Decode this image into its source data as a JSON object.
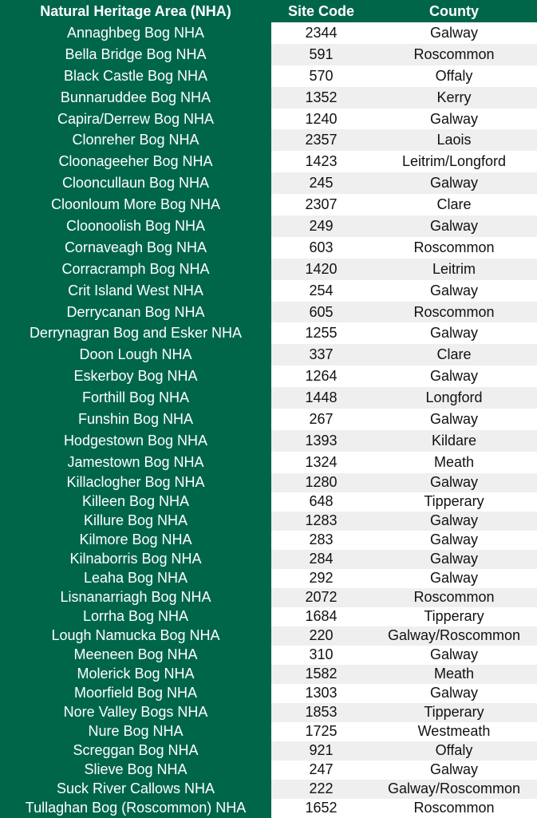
{
  "headers": {
    "nha": "Natural Heritage Area (NHA)",
    "code": "Site Code",
    "county": "County"
  },
  "colors": {
    "header_green": "#00664a",
    "row_alt": "#efefef"
  },
  "rows": [
    {
      "nha": "Annaghbeg Bog NHA",
      "code": "2344",
      "county": "Galway"
    },
    {
      "nha": "Bella Bridge Bog NHA",
      "code": "591",
      "county": "Roscommon"
    },
    {
      "nha": "Black Castle Bog NHA",
      "code": "570",
      "county": "Offaly"
    },
    {
      "nha": "Bunnaruddee Bog NHA",
      "code": "1352",
      "county": "Kerry"
    },
    {
      "nha": "Capira/Derrew Bog NHA",
      "code": "1240",
      "county": "Galway"
    },
    {
      "nha": "Clonreher Bog NHA",
      "code": "2357",
      "county": "Laois"
    },
    {
      "nha": "Cloonageeher Bog NHA",
      "code": "1423",
      "county": "Leitrim/Longford"
    },
    {
      "nha": "Clooncullaun Bog NHA",
      "code": "245",
      "county": "Galway"
    },
    {
      "nha": "Cloonloum More Bog NHA",
      "code": "2307",
      "county": "Clare"
    },
    {
      "nha": "Cloonoolish Bog NHA",
      "code": "249",
      "county": "Galway"
    },
    {
      "nha": "Cornaveagh Bog NHA",
      "code": "603",
      "county": "Roscommon"
    },
    {
      "nha": "Corracramph Bog NHA",
      "code": "1420",
      "county": "Leitrim"
    },
    {
      "nha": "Crit Island West NHA",
      "code": "254",
      "county": "Galway"
    },
    {
      "nha": "Derrycanan Bog NHA",
      "code": "605",
      "county": "Roscommon"
    },
    {
      "nha": "Derrynagran Bog and Esker NHA",
      "code": "1255",
      "county": "Galway"
    },
    {
      "nha": "Doon Lough NHA",
      "code": "337",
      "county": "Clare"
    },
    {
      "nha": "Eskerboy Bog NHA",
      "code": "1264",
      "county": "Galway"
    },
    {
      "nha": "Forthill Bog NHA",
      "code": "1448",
      "county": "Longford"
    },
    {
      "nha": "Funshin Bog NHA",
      "code": "267",
      "county": "Galway"
    },
    {
      "nha": "Hodgestown Bog NHA",
      "code": "1393",
      "county": "Kildare"
    },
    {
      "nha": "Jamestown Bog NHA",
      "code": "1324",
      "county": "Meath"
    },
    {
      "nha": "Killaclogher Bog NHA",
      "code": "1280",
      "county": "Galway"
    },
    {
      "nha": "Killeen Bog NHA",
      "code": "648",
      "county": "Tipperary"
    },
    {
      "nha": "Killure Bog NHA",
      "code": "1283",
      "county": "Galway"
    },
    {
      "nha": "Kilmore Bog NHA",
      "code": "283",
      "county": "Galway"
    },
    {
      "nha": "Kilnaborris Bog NHA",
      "code": "284",
      "county": "Galway"
    },
    {
      "nha": "Leaha Bog NHA",
      "code": "292",
      "county": "Galway"
    },
    {
      "nha": "Lisnanarriagh Bog NHA",
      "code": "2072",
      "county": "Roscommon"
    },
    {
      "nha": "Lorrha Bog NHA",
      "code": "1684",
      "county": "Tipperary"
    },
    {
      "nha": "Lough Namucka Bog NHA",
      "code": "220",
      "county": "Galway/Roscommon"
    },
    {
      "nha": "Meeneen Bog NHA",
      "code": "310",
      "county": "Galway"
    },
    {
      "nha": "Molerick Bog NHA",
      "code": "1582",
      "county": "Meath"
    },
    {
      "nha": "Moorfield Bog NHA",
      "code": "1303",
      "county": "Galway"
    },
    {
      "nha": "Nore Valley Bogs NHA",
      "code": "1853",
      "county": "Tipperary"
    },
    {
      "nha": "Nure Bog NHA",
      "code": "1725",
      "county": "Westmeath"
    },
    {
      "nha": "Screggan Bog NHA",
      "code": "921",
      "county": "Offaly"
    },
    {
      "nha": "Slieve Bog NHA",
      "code": "247",
      "county": "Galway"
    },
    {
      "nha": "Suck River Callows NHA",
      "code": "222",
      "county": "Galway/Roscommon"
    },
    {
      "nha": "Tullaghan Bog (Roscommon) NHA",
      "code": "1652",
      "county": "Roscommon"
    }
  ]
}
